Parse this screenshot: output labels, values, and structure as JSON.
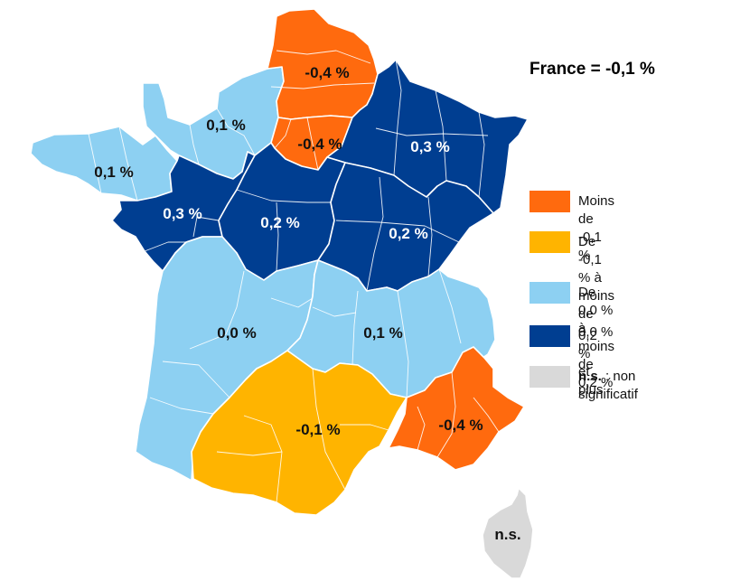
{
  "title": "France = -0,1 %",
  "colors": {
    "orange": "#ff6a0e",
    "yellow": "#ffb400",
    "light_blue": "#8dd0f2",
    "dark_blue": "#003e91",
    "grey": "#d9d9d9"
  },
  "legend": [
    {
      "label": "Moins de -0,1 %",
      "color": "#ff6a0e"
    },
    {
      "label": "De -0,1 % à\nmoins de 0,0 %",
      "color": "#ffb400"
    },
    {
      "label": "De 0,0 %\nà moins de 0,2 %",
      "color": "#8dd0f2"
    },
    {
      "label": "0,2 % et plus",
      "color": "#003e91"
    },
    {
      "label_bold": "n.s.",
      "label": " : non significatif",
      "color": "#d9d9d9"
    }
  ],
  "regions": [
    {
      "name": "Hauts-de-France",
      "label": "-0,4 %",
      "value": -0.4,
      "class": "orange"
    },
    {
      "name": "Île-de-France",
      "label": "-0,4 %",
      "value": -0.4,
      "class": "orange"
    },
    {
      "name": "Normandie",
      "label": "0,1 %",
      "value": 0.1,
      "class": "light_blue"
    },
    {
      "name": "Bretagne",
      "label": "0,1 %",
      "value": 0.1,
      "class": "light_blue"
    },
    {
      "name": "Grand Est",
      "label": "0,3 %",
      "value": 0.3,
      "class": "dark_blue"
    },
    {
      "name": "Pays de la Loire",
      "label": "0,3 %",
      "value": 0.3,
      "class": "dark_blue"
    },
    {
      "name": "Centre-Val de Loire",
      "label": "0,2 %",
      "value": 0.2,
      "class": "dark_blue"
    },
    {
      "name": "Bourgogne-Franche-Comté",
      "label": "0,2 %",
      "value": 0.2,
      "class": "dark_blue"
    },
    {
      "name": "Nouvelle-Aquitaine",
      "label": "0,0 %",
      "value": 0.0,
      "class": "light_blue"
    },
    {
      "name": "Auvergne-Rhône-Alpes",
      "label": "0,1 %",
      "value": 0.1,
      "class": "light_blue"
    },
    {
      "name": "Occitanie",
      "label": "-0,1 %",
      "value": -0.1,
      "class": "yellow"
    },
    {
      "name": "Provence-Alpes-Côte d'Azur",
      "label": "-0,4 %",
      "value": -0.4,
      "class": "orange"
    },
    {
      "name": "Corse",
      "label": "n.s.",
      "value": null,
      "class": "grey"
    }
  ]
}
